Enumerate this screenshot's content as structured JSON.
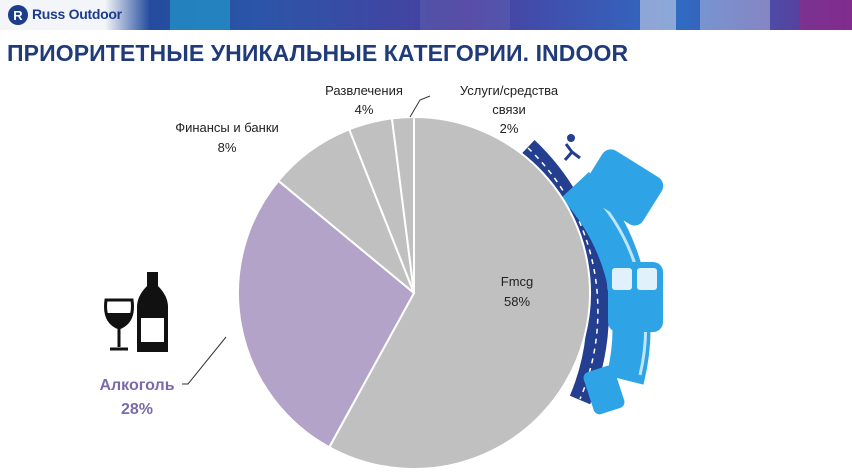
{
  "header": {
    "logo_text": "Russ Outdoor",
    "logo_mark": "R"
  },
  "page_title": "ПРИОРИТЕТНЫЕ УНИКАЛЬНЫЕ КАТЕГОРИИ. INDOOR",
  "colors": {
    "banner": "#1b3f8f",
    "title": "#1f3b7a",
    "gray": "#c0c0c0",
    "purple": "#b3a3c9",
    "blue_dark": "#243f8f",
    "blue_light": "#2ea3e6"
  },
  "chart_data": {
    "type": "pie",
    "title": "",
    "slices": [
      {
        "label": "Fmcg",
        "value": 58,
        "value_label": "58%",
        "color": "#c0c0c0"
      },
      {
        "label": "Алкоголь",
        "value": 28,
        "value_label": "28%",
        "color": "#b3a3c9"
      },
      {
        "label": "Финансы и банки",
        "value": 8,
        "value_label": "8%",
        "color": "#c0c0c0"
      },
      {
        "label": "Развлечения",
        "value": 4,
        "value_label": "4%",
        "color": "#c0c0c0"
      },
      {
        "label": "Услуги/средства связи",
        "label_lines": [
          "Услуги/средства",
          "связи"
        ],
        "value": 2,
        "value_label": "2%",
        "color": "#c0c0c0"
      }
    ]
  },
  "icons": [
    "wine-glass-icon",
    "wine-bottle-icon",
    "metro-train-decoration"
  ]
}
